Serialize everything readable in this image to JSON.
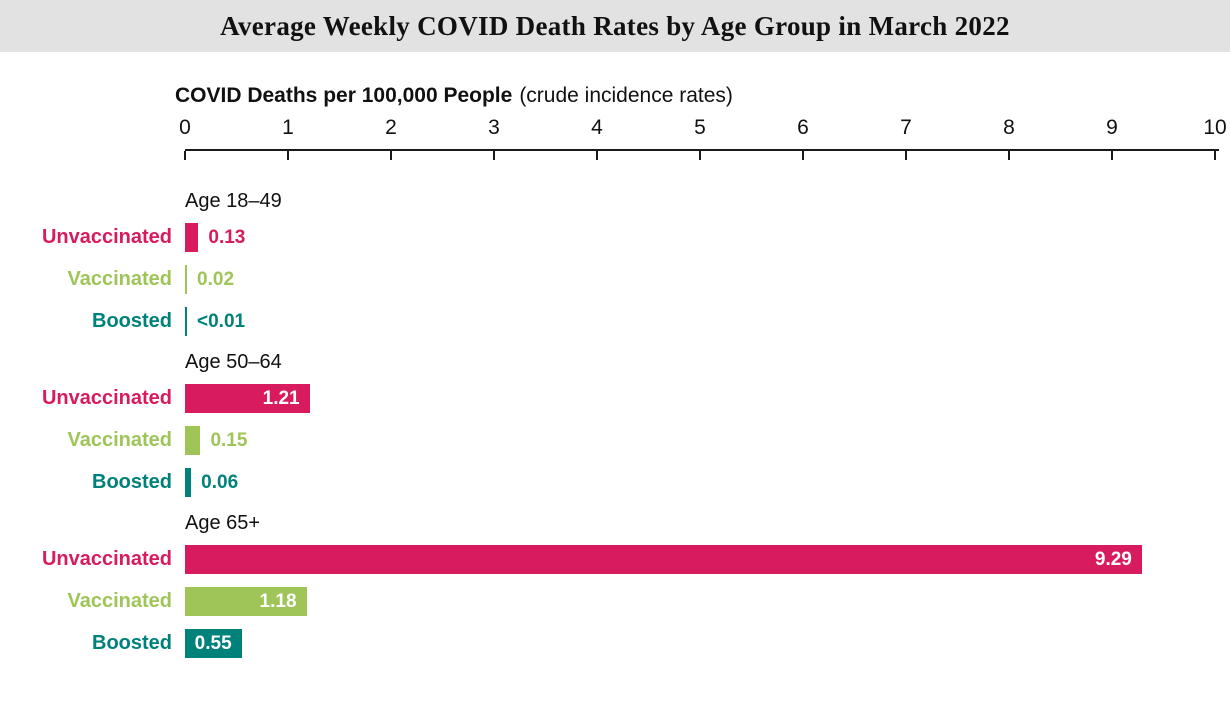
{
  "header": {
    "title": "Average Weekly COVID Death Rates by Age Group in March 2022"
  },
  "axis_title": {
    "bold": "COVID Deaths per 100,000 People",
    "note": "(crude incidence rates)"
  },
  "chart_data": {
    "type": "bar",
    "orientation": "horizontal",
    "title": "Average Weekly COVID Death Rates by Age Group in March 2022",
    "xlabel": "COVID Deaths per 100,000 People (crude incidence rates)",
    "xlim": [
      0,
      10
    ],
    "ticks": [
      0,
      1,
      2,
      3,
      4,
      5,
      6,
      7,
      8,
      9,
      10
    ],
    "grid": false,
    "legend": "row labels colored to match bars",
    "categories": [
      "Age 18–49",
      "Age 50–64",
      "Age 65+"
    ],
    "series": [
      {
        "name": "Unvaccinated",
        "color": "#d81b5f",
        "values": [
          0.13,
          1.21,
          9.29
        ],
        "labels": [
          "0.13",
          "1.21",
          "9.29"
        ],
        "label_inside": [
          false,
          true,
          true
        ]
      },
      {
        "name": "Vaccinated",
        "color": "#9fc558",
        "values": [
          0.02,
          0.15,
          1.18
        ],
        "labels": [
          "0.02",
          "0.15",
          "1.18"
        ],
        "label_inside": [
          false,
          false,
          true
        ]
      },
      {
        "name": "Boosted",
        "color": "#00817a",
        "values": [
          0.01,
          0.06,
          0.55
        ],
        "labels": [
          "<0.01",
          "0.06",
          "0.55"
        ],
        "label_inside": [
          false,
          false,
          true
        ]
      }
    ]
  }
}
